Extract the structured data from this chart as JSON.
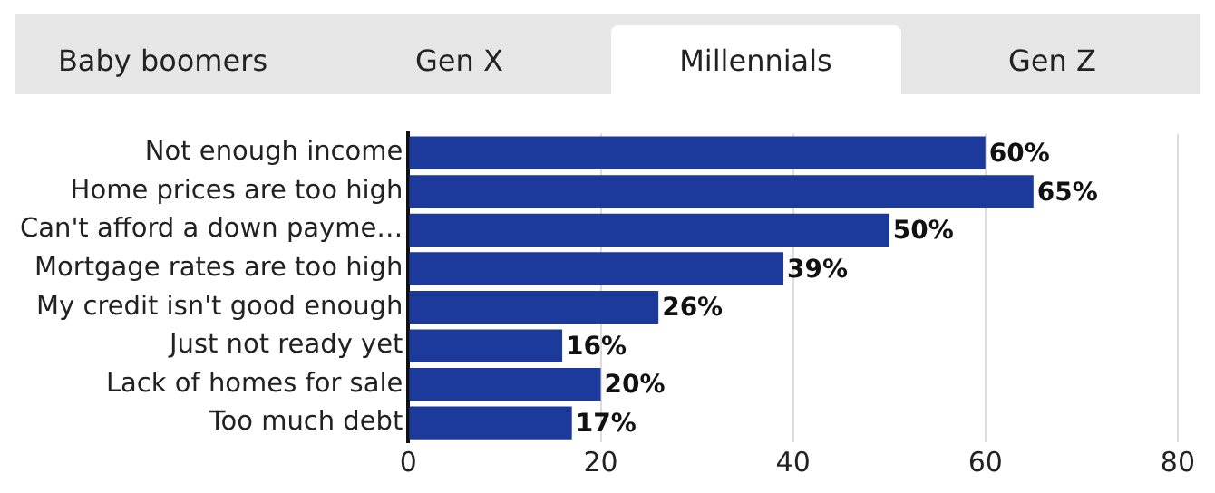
{
  "chart_data": {
    "type": "bar",
    "orientation": "horizontal",
    "annotations": [
      "Baby boomers",
      "Gen X",
      "Millennials",
      "Gen Z"
    ],
    "categories": [
      "Not enough income",
      "Home prices are too high",
      "Can't afford a down payme…",
      "Mortgage rates are too high",
      "My credit isn't good enough",
      "Just not ready yet",
      "Lack of homes for sale",
      "Too much debt"
    ],
    "values": [
      60,
      65,
      50,
      39,
      26,
      16,
      20,
      17
    ],
    "value_labels": [
      "60%",
      "65%",
      "50%",
      "39%",
      "26%",
      "16%",
      "20%",
      "17%"
    ],
    "color": "#1b3a9b",
    "xlim": [
      0,
      80
    ],
    "xticks": [
      0,
      20,
      40,
      60,
      80
    ],
    "grid": "x",
    "legend": false
  }
}
